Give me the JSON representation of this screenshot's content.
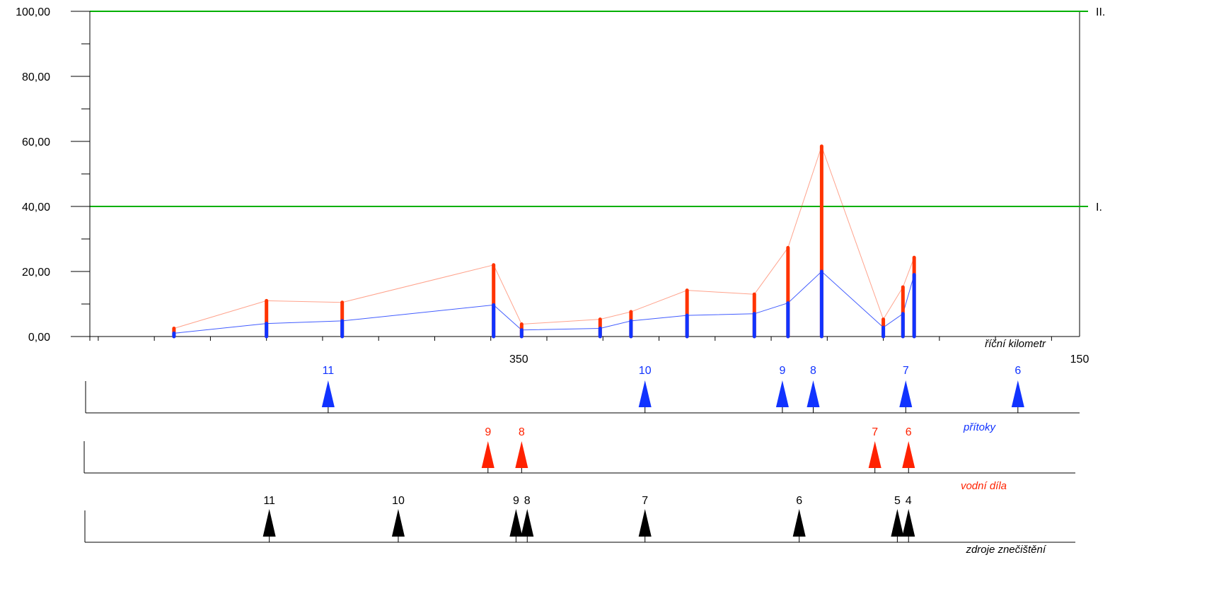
{
  "chart_data": {
    "type": "bar",
    "xlabel": "říční kilometr",
    "ylabel": "",
    "ylim": [
      0,
      100
    ],
    "y_ticks": [
      "0,00",
      "20,00",
      "40,00",
      "60,00",
      "80,00",
      "100,00"
    ],
    "y_tick_values": [
      0,
      20,
      40,
      60,
      80,
      100
    ],
    "xlim": [
      503,
      150
    ],
    "x_tick_labels": [
      "350",
      "150"
    ],
    "x_tick_values": [
      350,
      150
    ],
    "grid": false,
    "thresholds": [
      {
        "label": "I.",
        "value": 40,
        "color": "#00b000"
      },
      {
        "label": "II.",
        "value": 100,
        "color": "#00b000"
      }
    ],
    "series": [
      {
        "color": "#ff3300",
        "x": [
          473,
          440,
          413,
          359,
          349,
          321,
          310,
          290,
          266,
          254,
          242,
          220,
          213,
          209
        ],
        "values": [
          2.5,
          11,
          10.5,
          22,
          3.8,
          5.3,
          7.6,
          14.2,
          13,
          27.3,
          58.5,
          5.3,
          15.2,
          24.3
        ]
      },
      {
        "color": "#1133ff",
        "x": [
          473,
          440,
          413,
          359,
          349,
          321,
          310,
          290,
          266,
          254,
          242,
          220,
          213,
          209
        ],
        "values": [
          1,
          4,
          4.8,
          9.7,
          2,
          2.5,
          4.8,
          6.5,
          7,
          10.3,
          20,
          2.8,
          7,
          19
        ]
      }
    ],
    "marker_rows": [
      {
        "label": "přítoky",
        "color": "#1133ff",
        "markers": [
          {
            "label": "11",
            "x": 418
          },
          {
            "label": "10",
            "x": 305
          },
          {
            "label": "9",
            "x": 256
          },
          {
            "label": "8",
            "x": 245
          },
          {
            "label": "7",
            "x": 212
          },
          {
            "label": "6",
            "x": 172
          }
        ]
      },
      {
        "label": "vodní díla",
        "color": "#ff2200",
        "markers": [
          {
            "label": "9",
            "x": 361
          },
          {
            "label": "8",
            "x": 349
          },
          {
            "label": "7",
            "x": 223
          },
          {
            "label": "6",
            "x": 211
          }
        ]
      },
      {
        "label": "zdroje znečištění",
        "color": "#000000",
        "markers": [
          {
            "label": "11",
            "x": 439
          },
          {
            "label": "10",
            "x": 393
          },
          {
            "label": "9",
            "x": 351
          },
          {
            "label": "8",
            "x": 347
          },
          {
            "label": "7",
            "x": 305
          },
          {
            "label": "6",
            "x": 250
          },
          {
            "label": "5",
            "x": 215
          },
          {
            "label": "4",
            "x": 211
          }
        ]
      }
    ]
  }
}
